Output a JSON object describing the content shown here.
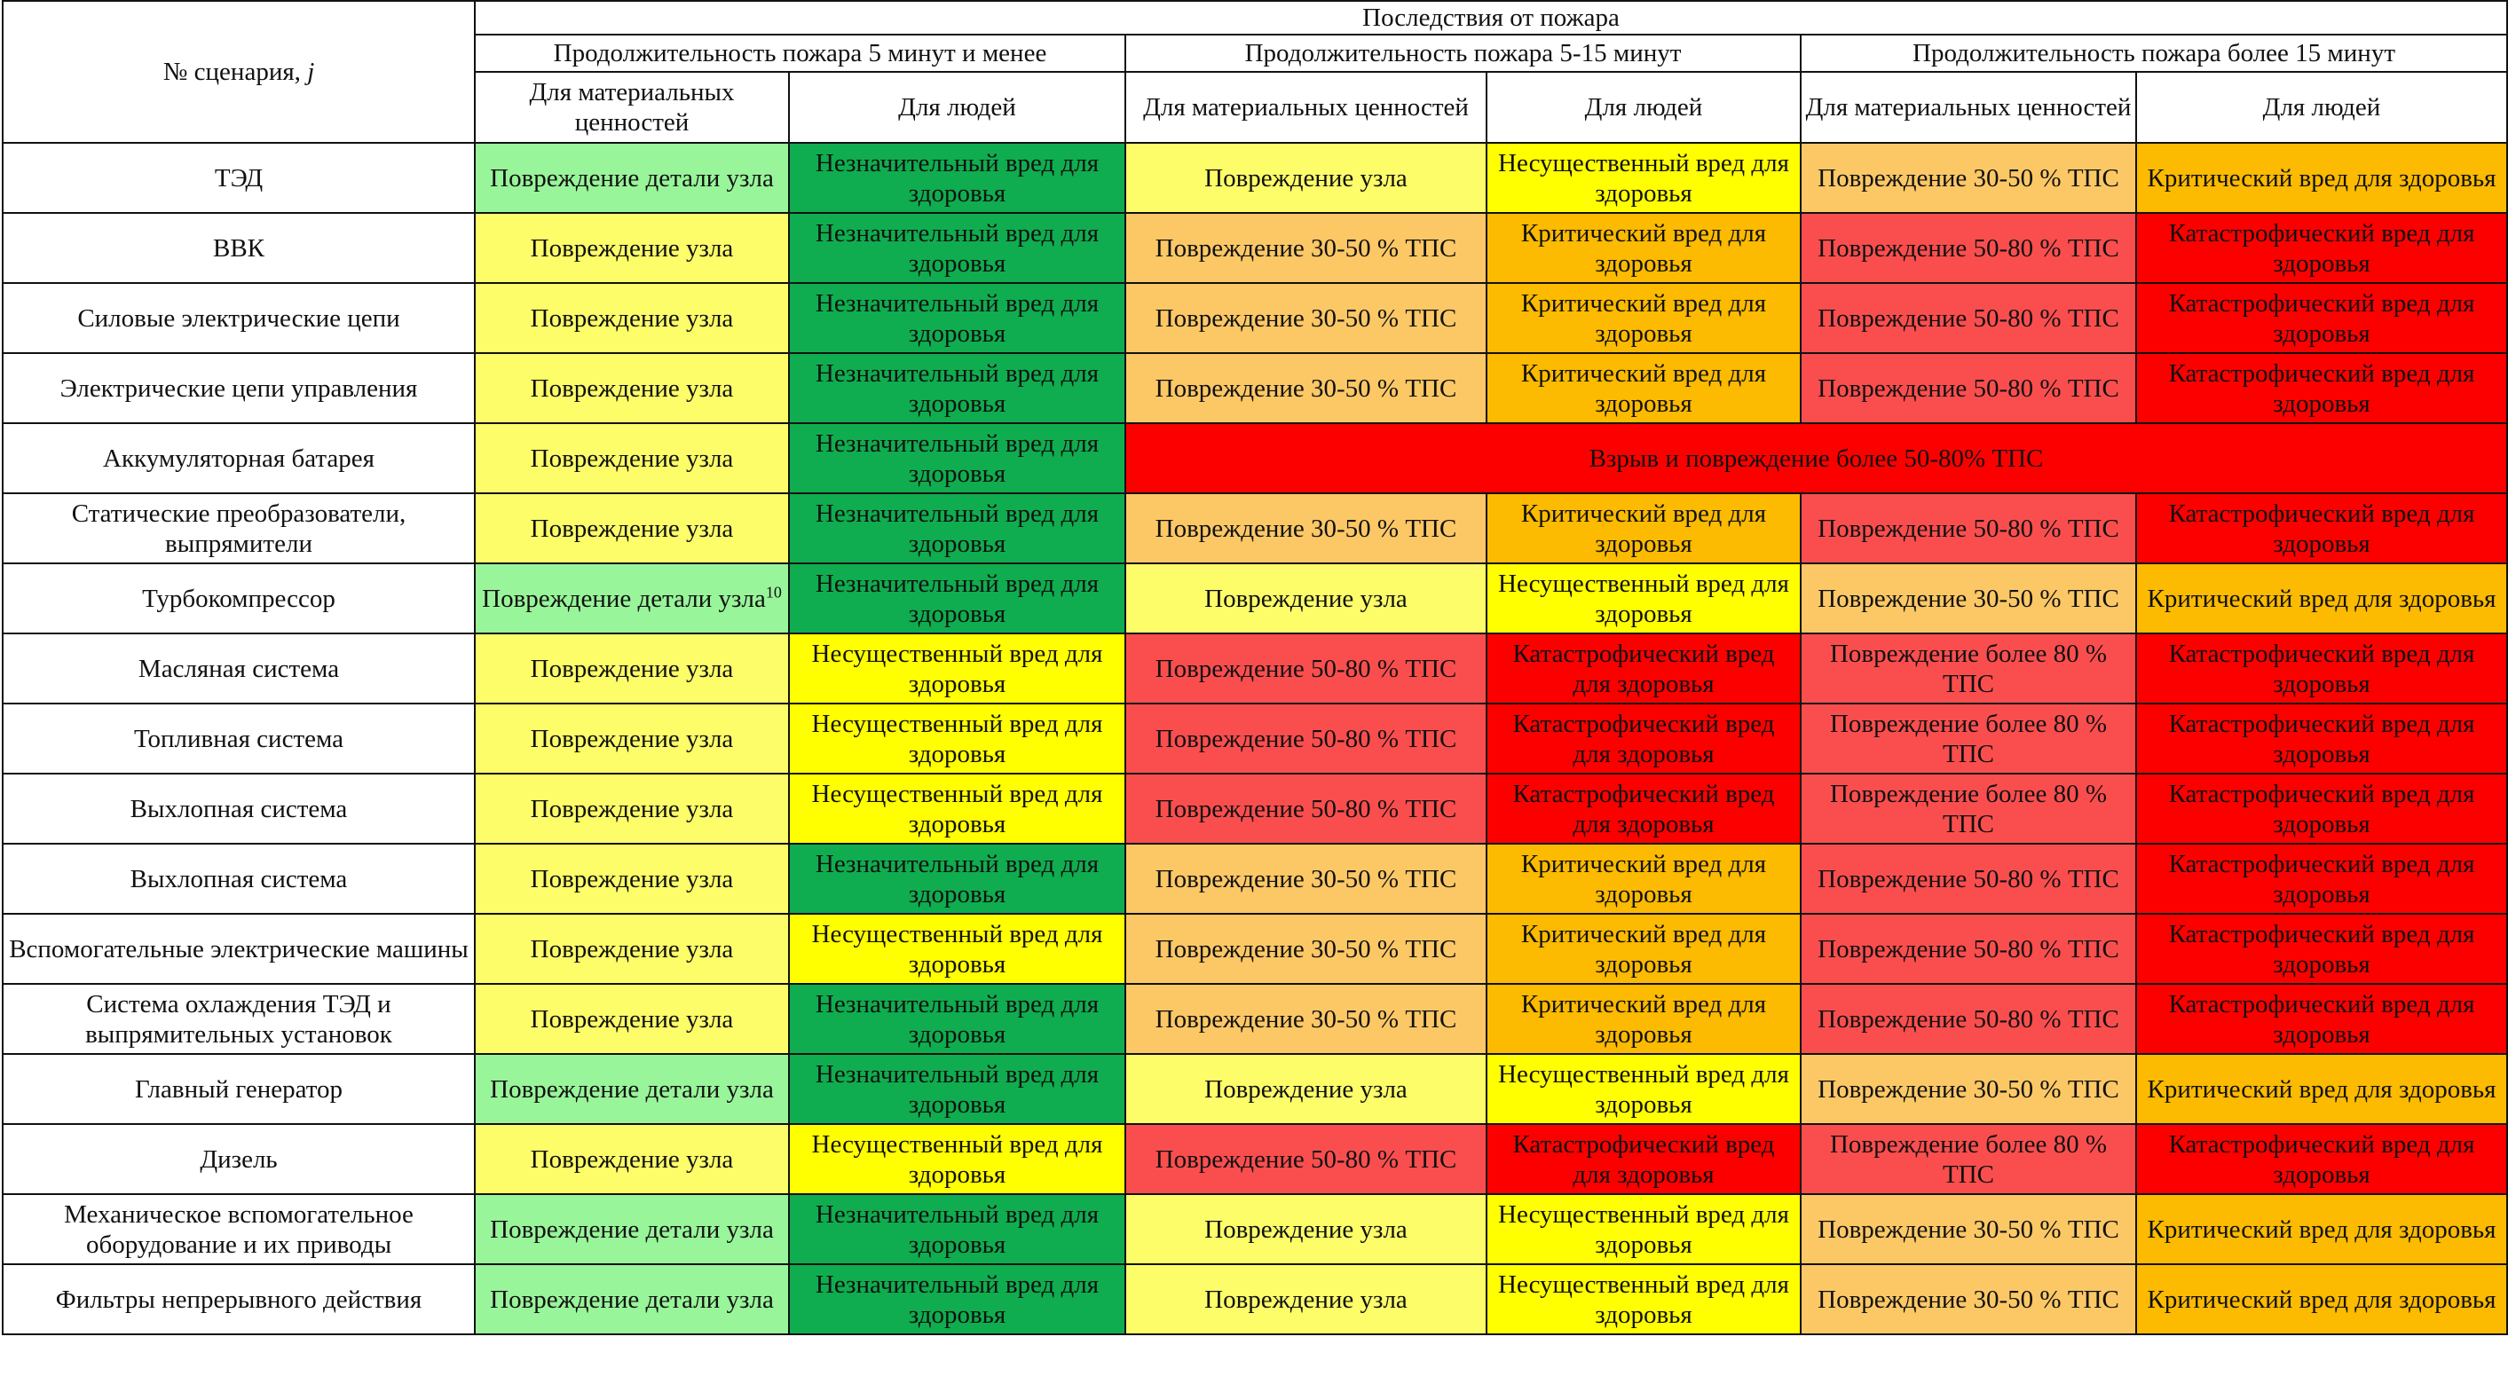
{
  "header": {
    "scenario_label": "№ сценария, ",
    "scenario_var": "j",
    "consequences": "Последствия от пожара",
    "durations": [
      "Продолжительность пожара 5 минут и менее",
      "Продолжительность пожара 5-15 минут",
      "Продолжительность пожара более 15 минут"
    ],
    "col_material": "Для материальных ценностей",
    "col_people": "Для людей"
  },
  "colors": {
    "light_green": "#99f59a",
    "dark_green": "#0fad4f",
    "yellow": "#fdfd6a",
    "bright_yellow": "#ffff00",
    "light_orange": "#fcc866",
    "orange": "#fcba00",
    "salmon": "#fa4e4e",
    "red": "#fc0000"
  },
  "rows": [
    {
      "name": "ТЭД",
      "cells": [
        {
          "text": "Повреждение детали узла",
          "color": "light_green"
        },
        {
          "text": "Незначительный вред для здоровья",
          "color": "dark_green"
        },
        {
          "text": "Повреждение узла",
          "color": "yellow"
        },
        {
          "text": "Несущественный вред  для здоровья",
          "color": "bright_yellow"
        },
        {
          "text": "Повреждение 30-50 % ТПС",
          "color": "light_orange"
        },
        {
          "text": "Критический вред для здоровья",
          "color": "orange"
        }
      ]
    },
    {
      "name": "ВВК",
      "cells": [
        {
          "text": "Повреждение узла",
          "color": "yellow"
        },
        {
          "text": "Незначительный вред для здоровья",
          "color": "dark_green"
        },
        {
          "text": "Повреждение 30-50 % ТПС",
          "color": "light_orange"
        },
        {
          "text": "Критический вред для здоровья",
          "color": "orange"
        },
        {
          "text": "Повреждение 50-80 % ТПС",
          "color": "salmon"
        },
        {
          "text": "Катастрофический вред для здоровья",
          "color": "red"
        }
      ]
    },
    {
      "name": "Силовые электрические цепи",
      "cells": [
        {
          "text": "Повреждение узла",
          "color": "yellow"
        },
        {
          "text": "Незначительный вред для здоровья",
          "color": "dark_green"
        },
        {
          "text": "Повреждение 30-50 % ТПС",
          "color": "light_orange"
        },
        {
          "text": "Критический вред для здоровья",
          "color": "orange"
        },
        {
          "text": "Повреждение 50-80 % ТПС",
          "color": "salmon"
        },
        {
          "text": "Катастрофический вред для здоровья",
          "color": "red"
        }
      ]
    },
    {
      "name": "Электрические цепи управления",
      "cells": [
        {
          "text": "Повреждение узла",
          "color": "yellow"
        },
        {
          "text": "Незначительный вред для здоровья",
          "color": "dark_green"
        },
        {
          "text": "Повреждение 30-50 % ТПС",
          "color": "light_orange"
        },
        {
          "text": "Критический вред для здоровья",
          "color": "orange"
        },
        {
          "text": "Повреждение 50-80 % ТПС",
          "color": "salmon"
        },
        {
          "text": "Катастрофический вред для здоровья",
          "color": "red"
        }
      ]
    },
    {
      "name": "Аккумуляторная батарея",
      "cells": [
        {
          "text": "Повреждение узла",
          "color": "yellow"
        },
        {
          "text": "Незначительный вред для здоровья",
          "color": "dark_green"
        },
        {
          "text": "Взрыв и повреждение более 50-80% ТПС",
          "color": "red",
          "span": 4
        }
      ]
    },
    {
      "name": "Статические преобразователи, выпрямители",
      "cells": [
        {
          "text": "Повреждение узла",
          "color": "yellow"
        },
        {
          "text": "Незначительный вред для здоровья",
          "color": "dark_green"
        },
        {
          "text": "Повреждение 30-50 % ТПС",
          "color": "light_orange"
        },
        {
          "text": "Критический вред для здоровья",
          "color": "orange"
        },
        {
          "text": "Повреждение 50-80 % ТПС",
          "color": "salmon"
        },
        {
          "text": "Катастрофический вред для здоровья",
          "color": "red"
        }
      ]
    },
    {
      "name": "Турбокомпрессор",
      "cells": [
        {
          "text": "Повреждение детали узла",
          "sup": "10",
          "color": "light_green"
        },
        {
          "text": "Незначительный вред для здоровья",
          "color": "dark_green"
        },
        {
          "text": "Повреждение узла",
          "color": "yellow"
        },
        {
          "text": "Несущественный вред  для здоровья",
          "color": "bright_yellow"
        },
        {
          "text": "Повреждение 30-50 % ТПС",
          "color": "light_orange"
        },
        {
          "text": "Критический вред для здоровья",
          "color": "orange"
        }
      ]
    },
    {
      "name": "Масляная система",
      "cells": [
        {
          "text": "Повреждение узла",
          "color": "yellow"
        },
        {
          "text": "Несущественный вред для здоровья",
          "color": "bright_yellow"
        },
        {
          "text": "Повреждение 50-80 % ТПС",
          "color": "salmon"
        },
        {
          "text": "Катастрофический вред для здоровья",
          "color": "red"
        },
        {
          "text": "Повреждение более 80 %  ТПС",
          "color": "salmon"
        },
        {
          "text": "Катастрофический вред для здоровья",
          "color": "red"
        }
      ]
    },
    {
      "name": "Топливная система",
      "cells": [
        {
          "text": "Повреждение узла",
          "color": "yellow"
        },
        {
          "text": "Несущественный вред для здоровья",
          "color": "bright_yellow"
        },
        {
          "text": "Повреждение 50-80 % ТПС",
          "color": "salmon"
        },
        {
          "text": "Катастрофический вред для здоровья",
          "color": "red"
        },
        {
          "text": "Повреждение более 80 %  ТПС",
          "color": "salmon"
        },
        {
          "text": "Катастрофический вред для здоровья",
          "color": "red"
        }
      ]
    },
    {
      "name": "Выхлопная система",
      "cells": [
        {
          "text": "Повреждение узла",
          "color": "yellow"
        },
        {
          "text": "Несущественный вред для здоровья",
          "color": "bright_yellow"
        },
        {
          "text": "Повреждение 50-80 % ТПС",
          "color": "salmon"
        },
        {
          "text": "Катастрофический вред для здоровья",
          "color": "red"
        },
        {
          "text": "Повреждение более 80 %  ТПС",
          "color": "salmon"
        },
        {
          "text": "Катастрофический вред для здоровья",
          "color": "red"
        }
      ]
    },
    {
      "name": "Выхлопная система",
      "cells": [
        {
          "text": "Повреждение узла",
          "color": "yellow"
        },
        {
          "text": "Незначительный вред для здоровья",
          "color": "dark_green"
        },
        {
          "text": "Повреждение 30-50 % ТПС",
          "color": "light_orange"
        },
        {
          "text": "Критический вред для здоровья",
          "color": "orange"
        },
        {
          "text": "Повреждение 50-80 % ТПС",
          "color": "salmon"
        },
        {
          "text": "Катастрофический вред для здоровья",
          "color": "red"
        }
      ]
    },
    {
      "name": "Вспомогательные электрические машины",
      "cells": [
        {
          "text": "Повреждение узла",
          "color": "yellow"
        },
        {
          "text": "Несущественный вред для здоровья",
          "color": "bright_yellow"
        },
        {
          "text": "Повреждение 30-50 % ТПС",
          "color": "light_orange"
        },
        {
          "text": "Критический вред для здоровья",
          "color": "orange"
        },
        {
          "text": "Повреждение 50-80 % ТПС",
          "color": "salmon"
        },
        {
          "text": "Катастрофический вред для здоровья",
          "color": "red"
        }
      ]
    },
    {
      "name": "Система охлаждения ТЭД и выпрямительных установок",
      "cells": [
        {
          "text": "Повреждение узла",
          "color": "yellow"
        },
        {
          "text": "Незначительный вред для здоровья",
          "color": "dark_green"
        },
        {
          "text": "Повреждение 30-50 % ТПС",
          "color": "light_orange"
        },
        {
          "text": "Критический вред для здоровья",
          "color": "orange"
        },
        {
          "text": "Повреждение 50-80 % ТПС",
          "color": "salmon"
        },
        {
          "text": "Катастрофический вред для здоровья",
          "color": "red"
        }
      ]
    },
    {
      "name": "Главный генератор",
      "cells": [
        {
          "text": "Повреждение детали узла",
          "color": "light_green"
        },
        {
          "text": "Незначительный вред для здоровья",
          "color": "dark_green"
        },
        {
          "text": "Повреждение узла",
          "color": "yellow"
        },
        {
          "text": "Несущественный вред  для здоровья",
          "color": "bright_yellow"
        },
        {
          "text": "Повреждение 30-50 % ТПС",
          "color": "light_orange"
        },
        {
          "text": "Критический вред для здоровья",
          "color": "orange"
        }
      ]
    },
    {
      "name": "Дизель",
      "cells": [
        {
          "text": "Повреждение узла",
          "color": "yellow"
        },
        {
          "text": "Несущественный вред для здоровья",
          "color": "bright_yellow"
        },
        {
          "text": "Повреждение 50-80 % ТПС",
          "color": "salmon"
        },
        {
          "text": "Катастрофический вред для здоровья",
          "color": "red"
        },
        {
          "text": "Повреждение более 80 %  ТПС",
          "color": "salmon"
        },
        {
          "text": "Катастрофический вред для здоровья",
          "color": "red"
        }
      ]
    },
    {
      "name": "Механическое вспомогательное оборудование и их приводы",
      "cells": [
        {
          "text": "Повреждение детали узла",
          "color": "light_green"
        },
        {
          "text": "Незначительный вред для здоровья",
          "color": "dark_green"
        },
        {
          "text": "Повреждение узла",
          "color": "yellow"
        },
        {
          "text": "Несущественный вред  для здоровья",
          "color": "bright_yellow"
        },
        {
          "text": "Повреждение 30-50 % ТПС",
          "color": "light_orange"
        },
        {
          "text": "Критический вред для здоровья",
          "color": "orange"
        }
      ]
    },
    {
      "name": "Фильтры непрерывного действия",
      "cells": [
        {
          "text": "Повреждение детали узла",
          "color": "light_green"
        },
        {
          "text": "Незначительный вред для здоровья",
          "color": "dark_green"
        },
        {
          "text": "Повреждение узла",
          "color": "yellow"
        },
        {
          "text": "Несущественный вред  для здоровья",
          "color": "bright_yellow"
        },
        {
          "text": "Повреждение 30-50 % ТПС",
          "color": "light_orange"
        },
        {
          "text": "Критический вред для здоровья",
          "color": "orange"
        }
      ]
    }
  ]
}
